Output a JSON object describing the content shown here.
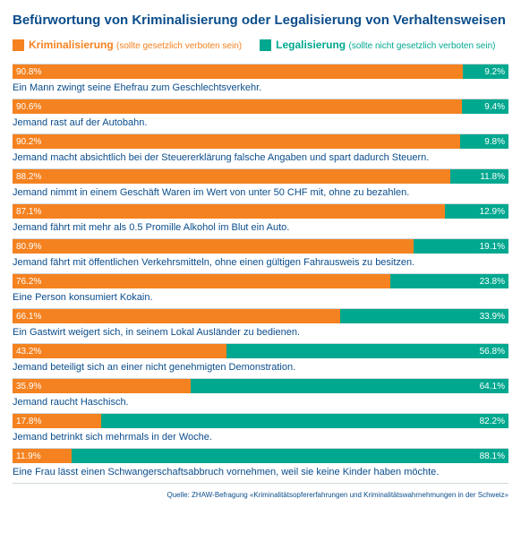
{
  "title": "Befürwortung von Kriminalisierung oder Legalisierung von Verhaltensweisen",
  "title_color": "#0a4d8c",
  "colors": {
    "criminal": "#f58220",
    "legal": "#00a88f",
    "descText": "#0a4d8c",
    "divider": "#cfd8dc",
    "sourceText": "#0a4d8c"
  },
  "legend": {
    "criminal_label": "Kriminalisierung",
    "criminal_sub": "(sollte gesetzlich verboten sein)",
    "legal_label": "Legalisierung",
    "legal_sub": "(sollte nicht gesetzlich verboten sein)"
  },
  "rows": [
    {
      "p1": 90.8,
      "p2": 9.2,
      "l1": "90.8%",
      "l2": "9.2%",
      "desc": "Ein Mann zwingt seine Ehefrau zum Geschlechtsverkehr."
    },
    {
      "p1": 90.6,
      "p2": 9.4,
      "l1": "90.6%",
      "l2": "9.4%",
      "desc": "Jemand rast auf der Autobahn."
    },
    {
      "p1": 90.2,
      "p2": 9.8,
      "l1": "90.2%",
      "l2": "9.8%",
      "desc": "Jemand macht absichtlich bei der Steuererklärung falsche Angaben und spart dadurch Steuern."
    },
    {
      "p1": 88.2,
      "p2": 11.8,
      "l1": "88.2%",
      "l2": "11.8%",
      "desc": "Jemand nimmt in einem Geschäft Waren im Wert von unter 50 CHF mit, ohne zu bezahlen."
    },
    {
      "p1": 87.1,
      "p2": 12.9,
      "l1": "87.1%",
      "l2": "12.9%",
      "desc": "Jemand fährt mit mehr als 0.5 Promille Alkohol im Blut ein Auto."
    },
    {
      "p1": 80.9,
      "p2": 19.1,
      "l1": "80.9%",
      "l2": "19.1%",
      "desc": "Jemand fährt mit öffentlichen Verkehrsmitteln, ohne einen gültigen Fahrausweis zu besitzen."
    },
    {
      "p1": 76.2,
      "p2": 23.8,
      "l1": "76.2%",
      "l2": "23.8%",
      "desc": "Eine Person konsumiert Kokain."
    },
    {
      "p1": 66.1,
      "p2": 33.9,
      "l1": "66.1%",
      "l2": "33.9%",
      "desc": "Ein Gastwirt weigert sich, in seinem Lokal Ausländer zu bedienen."
    },
    {
      "p1": 43.2,
      "p2": 56.8,
      "l1": "43.2%",
      "l2": "56.8%",
      "desc": "Jemand beteiligt sich an einer nicht genehmigten Demonstration."
    },
    {
      "p1": 35.9,
      "p2": 64.1,
      "l1": "35.9%",
      "l2": "64.1%",
      "desc": "Jemand raucht Haschisch."
    },
    {
      "p1": 17.8,
      "p2": 82.2,
      "l1": "17.8%",
      "l2": "82.2%",
      "desc": "Jemand betrinkt sich mehrmals in der Woche."
    },
    {
      "p1": 11.9,
      "p2": 88.1,
      "l1": "11.9%",
      "l2": "88.1%",
      "desc": "Eine Frau lässt einen Schwangerschaftsabbruch vornehmen, weil sie keine Kinder haben möchte."
    }
  ],
  "source": "Quelle: ZHAW-Befragung «Kriminalitätsopfererfahrungen und Kriminalitätswahrnehmungen in der Schweiz»"
}
